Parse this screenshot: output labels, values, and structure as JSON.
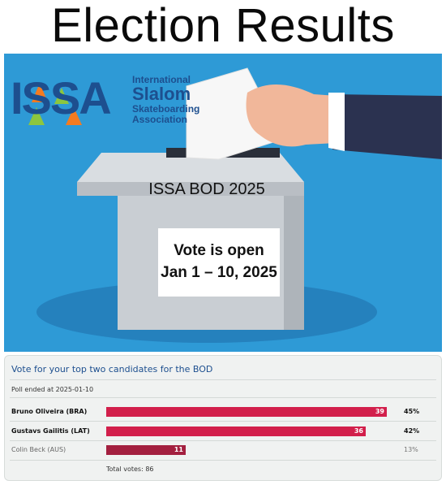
{
  "headline": "Election Results",
  "banner": {
    "logo": {
      "acronym": "ISSA",
      "line1": "International",
      "line2": "Slalom",
      "line3": "Skateboarding",
      "line4": "Association"
    },
    "box_label": "ISSA BOD 2025",
    "notice_line1": "Vote is open",
    "notice_line2": "Jan 1 – 10, 2025",
    "colors": {
      "sky": "#2e9ad6",
      "box": "#c9ced3",
      "logo_blue": "#1d4f8f"
    }
  },
  "poll": {
    "title": "Vote for your top two candidates for the BOD",
    "ended": "Poll ended at 2025-01-10",
    "max_votes": 40,
    "candidates": [
      {
        "name": "Bruno Oliveira (BRA)",
        "votes": "39",
        "percent": "45%",
        "vote_fraction": 0.975,
        "top": true
      },
      {
        "name": "Gustavs Gailitis (LAT)",
        "votes": "36",
        "percent": "42%",
        "vote_fraction": 0.9,
        "top": true
      },
      {
        "name": "Colin Beck (AUS)",
        "votes": "11",
        "percent": "13%",
        "vote_fraction": 0.275,
        "top": false
      }
    ],
    "total": "Total votes: 86",
    "bar_color": "#d21f4b"
  }
}
